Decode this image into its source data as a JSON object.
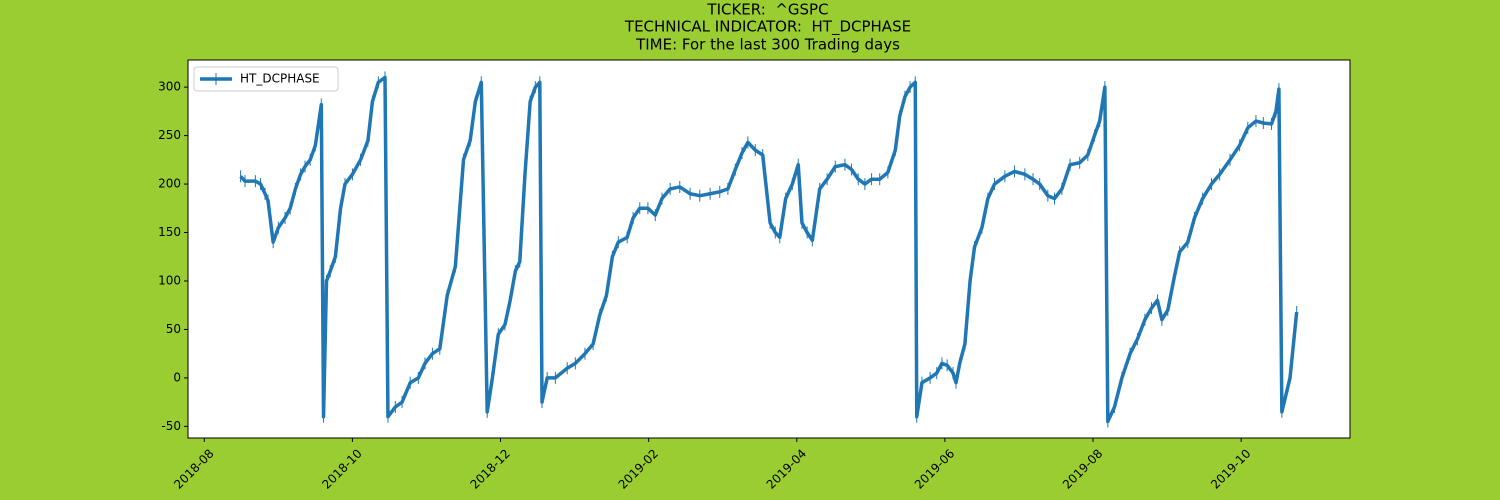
{
  "chart_data": {
    "type": "line",
    "title": [
      "TICKER:  ^GSPC",
      "TECHNICAL INDICATOR:  HT_DCPHASE",
      "TIME: For the last 300 Trading days"
    ],
    "x": [
      0.49,
      0.55,
      0.69,
      0.76,
      0.82,
      0.86,
      0.93,
      1.0,
      1.09,
      1.16,
      1.23,
      1.3,
      1.36,
      1.43,
      1.5,
      1.58,
      1.61,
      1.65,
      1.7,
      1.77,
      1.84,
      1.9,
      2.0,
      2.11,
      2.21,
      2.27,
      2.35,
      2.44,
      2.48,
      2.58,
      2.67,
      2.78,
      2.89,
      2.98,
      3.08,
      3.18,
      3.28,
      3.39,
      3.5,
      3.59,
      3.66,
      3.74,
      3.82,
      3.89,
      3.97,
      4.06,
      4.13,
      4.2,
      4.26,
      4.33,
      4.4,
      4.47,
      4.53,
      4.56,
      4.63,
      4.74,
      4.9,
      5.01,
      5.14,
      5.25,
      5.34,
      5.43,
      5.51,
      5.59,
      5.71,
      5.79,
      5.88,
      5.99,
      6.09,
      6.18,
      6.29,
      6.42,
      6.56,
      6.69,
      6.83,
      6.96,
      7.07,
      7.17,
      7.26,
      7.34,
      7.44,
      7.54,
      7.64,
      7.71,
      7.77,
      7.85,
      7.94,
      8.02,
      8.07,
      8.14,
      8.21,
      8.31,
      8.41,
      8.52,
      8.65,
      8.74,
      8.83,
      8.92,
      9.01,
      9.12,
      9.23,
      9.33,
      9.39,
      9.46,
      9.53,
      9.6,
      9.62,
      9.69,
      9.8,
      9.89,
      9.96,
      10.03,
      10.11,
      10.15,
      10.2,
      10.27,
      10.34,
      10.4,
      10.5,
      10.58,
      10.67,
      10.81,
      10.94,
      11.08,
      11.19,
      11.28,
      11.39,
      11.48,
      11.58,
      11.69,
      11.82,
      11.93,
      12.02,
      12.09,
      12.16,
      12.2,
      12.29,
      12.39,
      12.5,
      12.6,
      12.7,
      12.79,
      12.87,
      12.93,
      13.01,
      13.1,
      13.17,
      13.28,
      13.37,
      13.48,
      13.6,
      13.71,
      13.85,
      13.98,
      14.09,
      14.2,
      14.3,
      14.41,
      14.47,
      14.51,
      14.55,
      14.66,
      14.75
    ],
    "series": [
      {
        "name": "HT_DCPHASE",
        "color": "#1f77b4",
        "values": [
          208,
          203,
          203,
          200,
          190,
          183,
          140,
          155,
          165,
          175,
          195,
          210,
          218,
          225,
          240,
          282,
          -40,
          100,
          110,
          125,
          175,
          200,
          210,
          225,
          245,
          285,
          305,
          310,
          -40,
          -30,
          -25,
          -5,
          0,
          15,
          25,
          30,
          85,
          115,
          225,
          245,
          285,
          305,
          -35,
          0,
          45,
          55,
          80,
          110,
          120,
          210,
          285,
          300,
          305,
          -25,
          0,
          0,
          10,
          15,
          25,
          35,
          65,
          85,
          125,
          140,
          145,
          165,
          175,
          175,
          168,
          185,
          195,
          197,
          190,
          188,
          190,
          192,
          195,
          215,
          232,
          243,
          235,
          230,
          160,
          150,
          145,
          185,
          200,
          220,
          160,
          150,
          142,
          195,
          205,
          218,
          220,
          215,
          205,
          200,
          205,
          205,
          212,
          235,
          270,
          290,
          300,
          305,
          -40,
          -5,
          0,
          5,
          15,
          13,
          5,
          -5,
          15,
          35,
          100,
          135,
          155,
          185,
          200,
          208,
          213,
          210,
          205,
          200,
          188,
          185,
          195,
          220,
          222,
          230,
          250,
          265,
          300,
          -45,
          -30,
          0,
          25,
          40,
          60,
          72,
          80,
          60,
          70,
          105,
          130,
          140,
          165,
          185,
          200,
          210,
          225,
          240,
          258,
          265,
          263,
          262,
          275,
          298,
          -35,
          0,
          68
        ]
      }
    ],
    "xlim": [
      -0.22,
      15.47
    ],
    "xticks": [
      {
        "value": 0,
        "label": "2018-08"
      },
      {
        "value": 2,
        "label": "2018-10"
      },
      {
        "value": 4,
        "label": "2018-12"
      },
      {
        "value": 6,
        "label": "2019-02"
      },
      {
        "value": 8,
        "label": "2019-04"
      },
      {
        "value": 10,
        "label": "2019-06"
      },
      {
        "value": 12,
        "label": "2019-08"
      },
      {
        "value": 14,
        "label": "2019-10"
      }
    ],
    "ylim": [
      -62,
      328
    ],
    "yticks": [
      -50,
      0,
      50,
      100,
      150,
      200,
      250,
      300
    ],
    "legend": "upper left"
  }
}
